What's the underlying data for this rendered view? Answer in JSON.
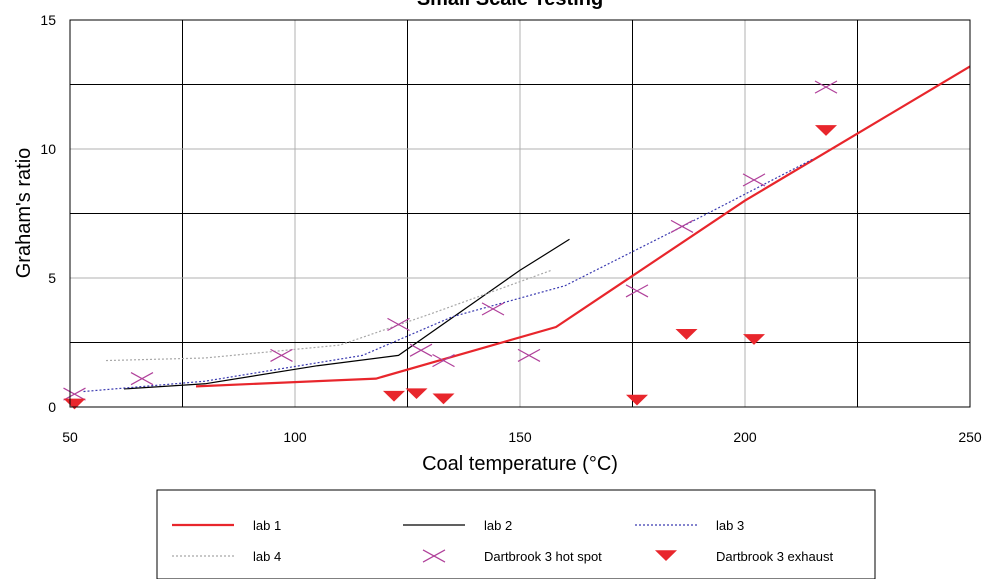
{
  "chart_data": {
    "type": "line",
    "title": "Small Scale Testing",
    "xlabel": "Coal temperature (°C)",
    "ylabel": "Graham's ratio",
    "xlim": [
      50,
      250
    ],
    "ylim": [
      0,
      15
    ],
    "xticks": [
      50,
      100,
      150,
      200,
      250
    ],
    "yticks": [
      0,
      5,
      10,
      15
    ],
    "grid": true,
    "legend_position": "bottom",
    "series": [
      {
        "name": "lab 1",
        "kind": "line",
        "color": "#e8262c",
        "dash": "solid",
        "points": [
          [
            78,
            0.8
          ],
          [
            118,
            1.1
          ],
          [
            158,
            3.1
          ],
          [
            200,
            8.0
          ],
          [
            250,
            13.2
          ]
        ]
      },
      {
        "name": "lab 2",
        "kind": "line",
        "color": "#000000",
        "dash": "solid",
        "points": [
          [
            62,
            0.7
          ],
          [
            80,
            0.9
          ],
          [
            105,
            1.6
          ],
          [
            123,
            2.0
          ],
          [
            150,
            5.3
          ],
          [
            161,
            6.5
          ]
        ]
      },
      {
        "name": "lab 3",
        "kind": "line",
        "color": "#3a3ab0",
        "dash": "dotted",
        "points": [
          [
            53,
            0.6
          ],
          [
            80,
            1.0
          ],
          [
            115,
            2.0
          ],
          [
            135,
            3.5
          ],
          [
            160,
            4.7
          ],
          [
            185,
            6.9
          ],
          [
            215,
            9.6
          ]
        ]
      },
      {
        "name": "lab 4",
        "kind": "line",
        "color": "#a8a8a8",
        "dash": "dotted",
        "points": [
          [
            58,
            1.8
          ],
          [
            80,
            1.9
          ],
          [
            110,
            2.4
          ],
          [
            130,
            3.6
          ],
          [
            157,
            5.3
          ]
        ]
      },
      {
        "name": "Dartbrook 3 hot spot",
        "kind": "cross",
        "color": "#b0409a",
        "points": [
          [
            51,
            0.5
          ],
          [
            66,
            1.1
          ],
          [
            97,
            2.0
          ],
          [
            123,
            3.2
          ],
          [
            128,
            2.2
          ],
          [
            133,
            1.8
          ],
          [
            144,
            3.8
          ],
          [
            152,
            2.0
          ],
          [
            176,
            4.5
          ],
          [
            186,
            7.0
          ],
          [
            202,
            8.8
          ],
          [
            218,
            12.4
          ]
        ]
      },
      {
        "name": "Dartbrook 3 exhaust",
        "kind": "triangle",
        "color": "#e8262c",
        "points": [
          [
            51,
            0.1
          ],
          [
            122,
            0.4
          ],
          [
            127,
            0.5
          ],
          [
            133,
            0.3
          ],
          [
            176,
            0.25
          ],
          [
            187,
            2.8
          ],
          [
            202,
            2.6
          ],
          [
            218,
            10.7
          ]
        ]
      }
    ]
  }
}
